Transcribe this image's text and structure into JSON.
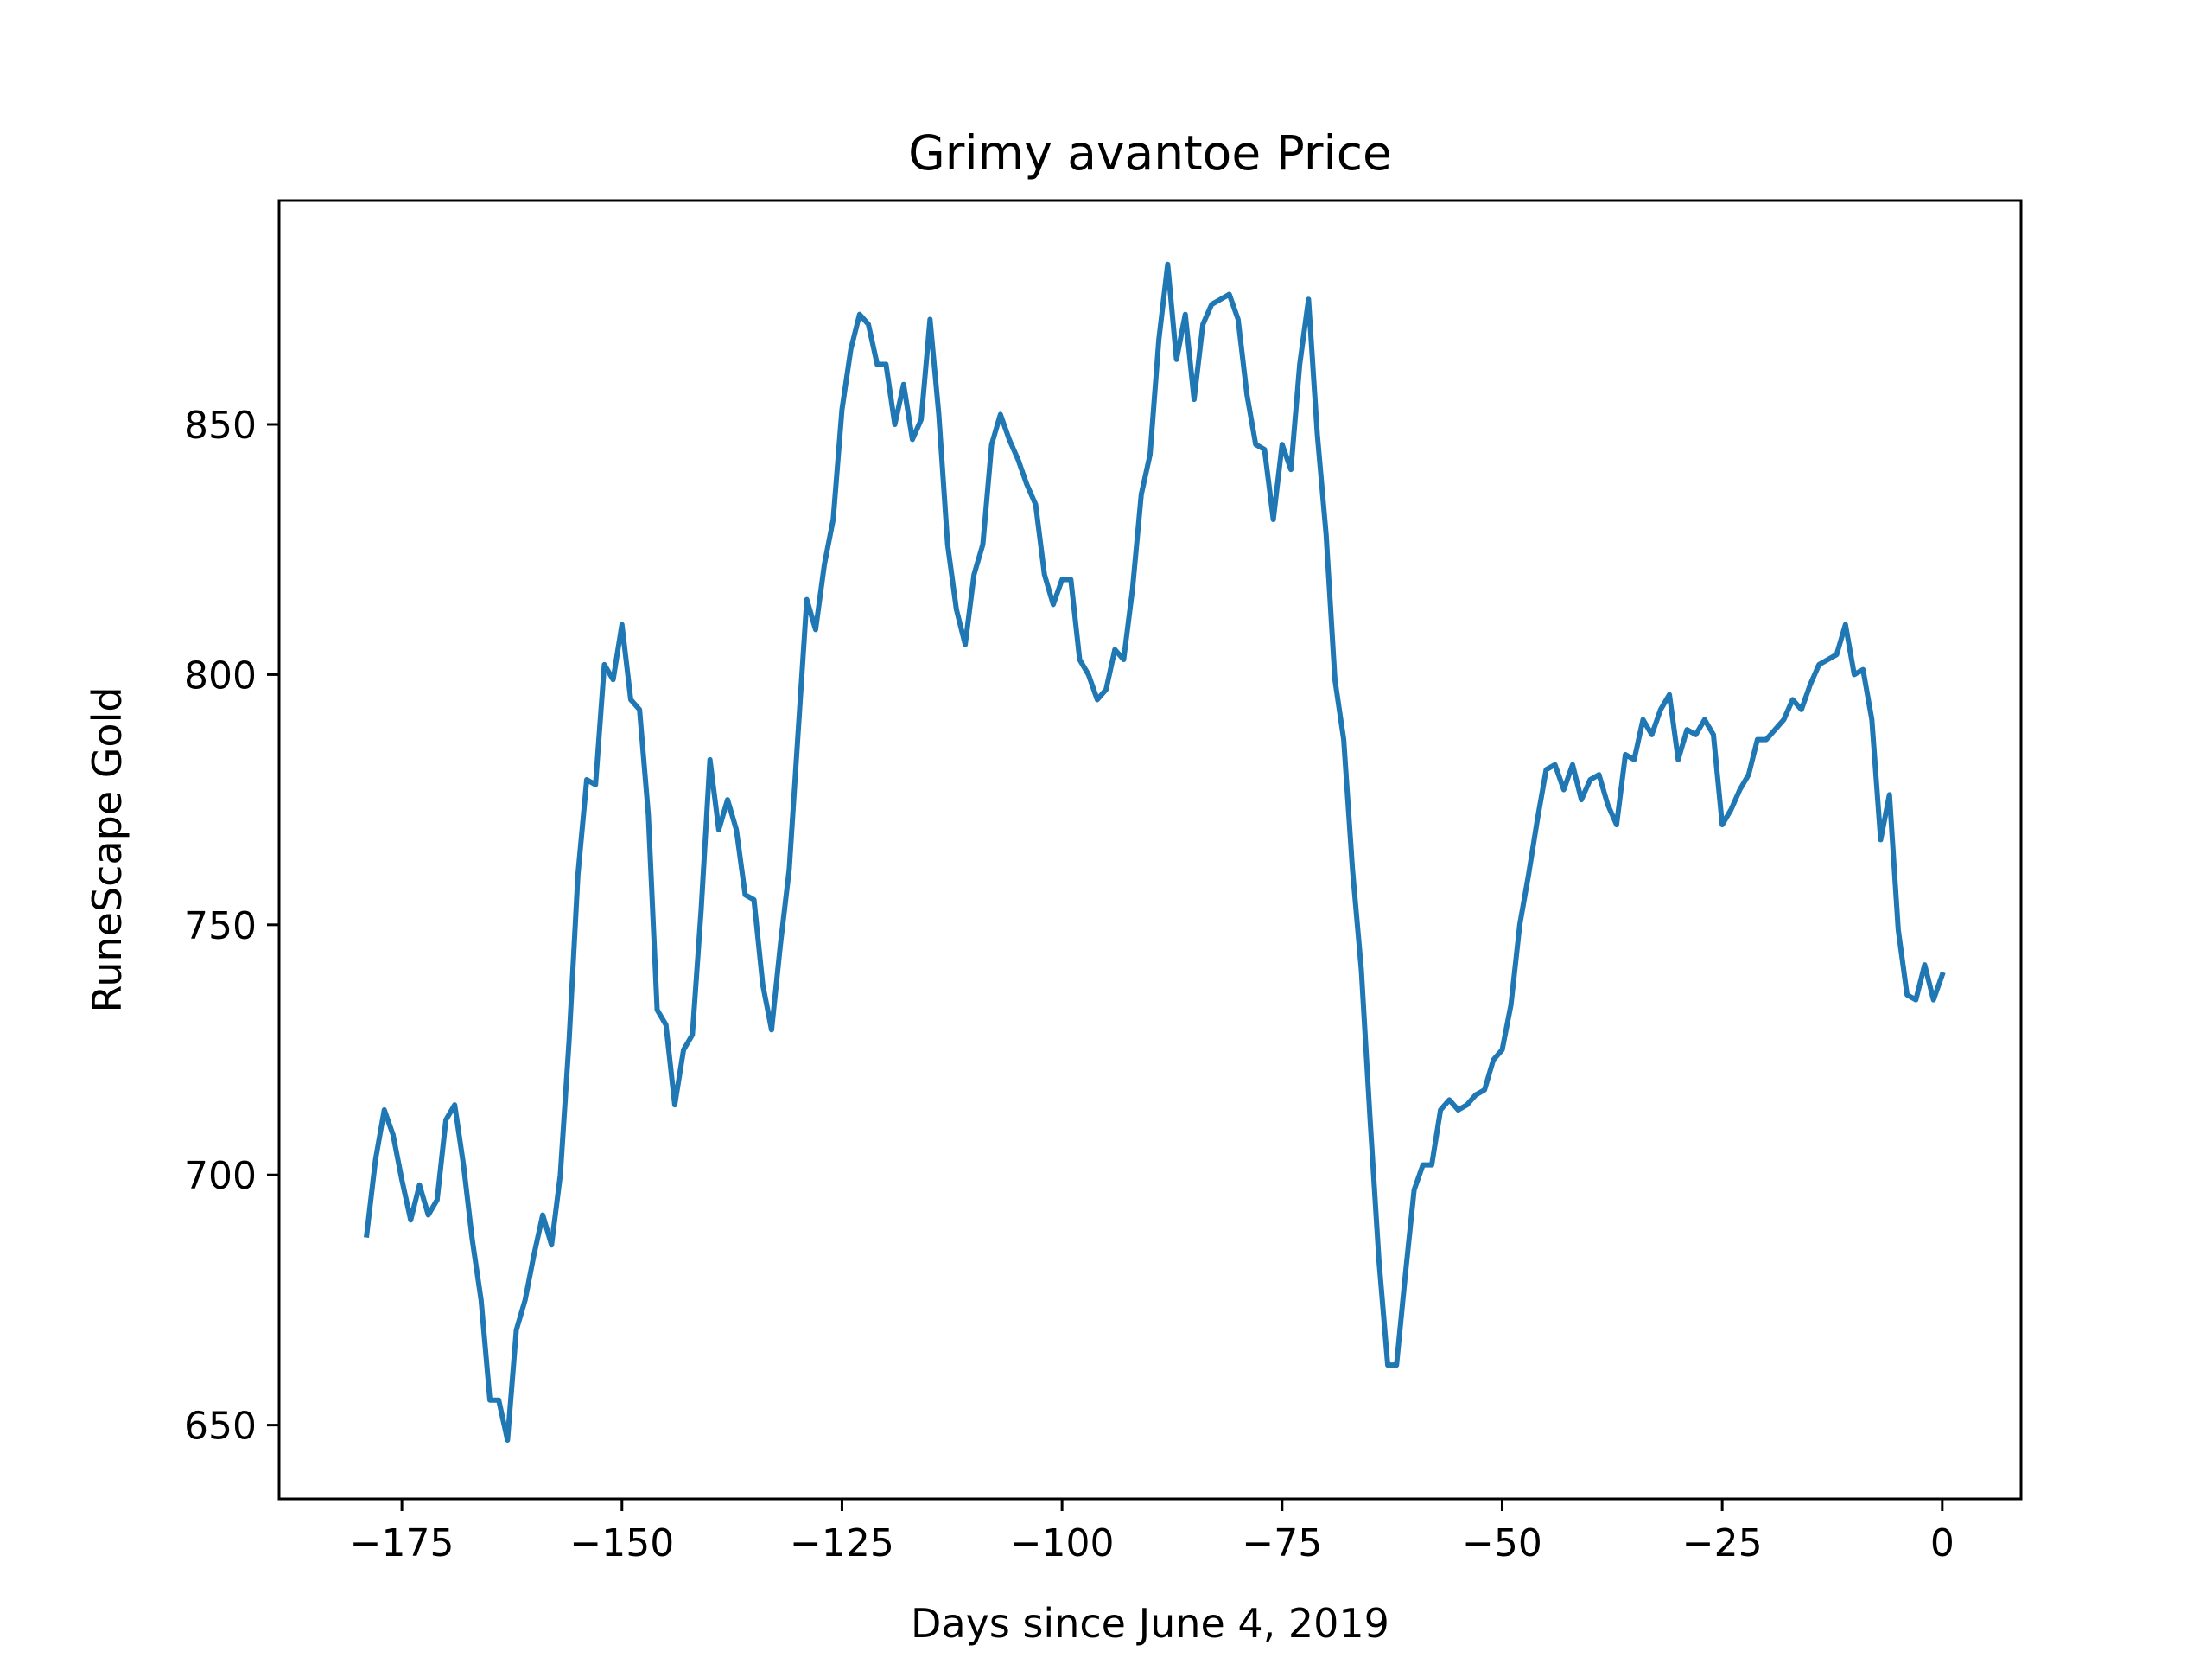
{
  "chart_data": {
    "type": "line",
    "title": "Grimy avantoe Price",
    "xlabel": "Days since June 4, 2019",
    "ylabel": "RuneScape Gold",
    "xlim": [
      -188.95,
      8.95
    ],
    "ylim": [
      635.25,
      894.75
    ],
    "xticks": [
      -175,
      -150,
      -125,
      -100,
      -75,
      -50,
      -25,
      0
    ],
    "xtick_labels": [
      "−175",
      "−150",
      "−125",
      "−100",
      "−75",
      "−50",
      "−25",
      "0"
    ],
    "yticks": [
      650,
      700,
      750,
      800,
      850
    ],
    "ytick_labels": [
      "650",
      "700",
      "750",
      "800",
      "850"
    ],
    "grid": false,
    "series": [
      {
        "color": "#1f77b4",
        "x": [
          -179,
          -178,
          -177,
          -176,
          -175,
          -174,
          -173,
          -172,
          -171,
          -170,
          -169,
          -168,
          -167,
          -166,
          -165,
          -164,
          -163,
          -162,
          -161,
          -160,
          -159,
          -158,
          -157,
          -156,
          -155,
          -154,
          -153,
          -152,
          -151,
          -150,
          -149,
          -148,
          -147,
          -146,
          -145,
          -144,
          -143,
          -142,
          -141,
          -140,
          -139,
          -138,
          -137,
          -136,
          -135,
          -134,
          -133,
          -132,
          -131,
          -130,
          -129,
          -128,
          -127,
          -126,
          -125,
          -124,
          -123,
          -122,
          -121,
          -120,
          -119,
          -118,
          -117,
          -116,
          -115,
          -114,
          -113,
          -112,
          -111,
          -110,
          -109,
          -108,
          -107,
          -106,
          -105,
          -104,
          -103,
          -102,
          -101,
          -100,
          -99,
          -98,
          -97,
          -96,
          -95,
          -94,
          -93,
          -92,
          -91,
          -90,
          -89,
          -88,
          -87,
          -86,
          -85,
          -84,
          -83,
          -82,
          -81,
          -80,
          -79,
          -78,
          -77,
          -76,
          -75,
          -74,
          -73,
          -72,
          -71,
          -70,
          -69,
          -68,
          -67,
          -66,
          -65,
          -64,
          -63,
          -62,
          -61,
          -60,
          -59,
          -58,
          -57,
          -56,
          -55,
          -54,
          -53,
          -52,
          -51,
          -50,
          -49,
          -48,
          -47,
          -46,
          -45,
          -44,
          -43,
          -42,
          -41,
          -40,
          -39,
          -38,
          -37,
          -36,
          -35,
          -34,
          -33,
          -32,
          -31,
          -30,
          -29,
          -28,
          -27,
          -26,
          -25,
          -24,
          -23,
          -22,
          -21,
          -20,
          -19,
          -18,
          -17,
          -16,
          -15,
          -14,
          -13,
          -12,
          -11,
          -10,
          -9,
          -8,
          -7,
          -6,
          -5,
          -4,
          -3,
          -2,
          -1,
          0
        ],
        "values": [
          688,
          703,
          713,
          708,
          699,
          691,
          698,
          692,
          695,
          711,
          714,
          702,
          687,
          675,
          655,
          655,
          647,
          669,
          675,
          684,
          692,
          686,
          700,
          727,
          760,
          779,
          778,
          802,
          799,
          810,
          795,
          793,
          772,
          733,
          730,
          714,
          725,
          728,
          753,
          783,
          769,
          775,
          769,
          756,
          755,
          738,
          729,
          746,
          761,
          788,
          815,
          809,
          822,
          831,
          853,
          865,
          872,
          870,
          862,
          862,
          850,
          858,
          847,
          851,
          871,
          852,
          826,
          813,
          806,
          820,
          826,
          846,
          852,
          847,
          843,
          838,
          834,
          820,
          814,
          819,
          819,
          803,
          800,
          795,
          797,
          805,
          803,
          817,
          836,
          844,
          867,
          882,
          863,
          872,
          855,
          870,
          874,
          875,
          876,
          871,
          856,
          846,
          845,
          831,
          846,
          841,
          862,
          875,
          848,
          828,
          799,
          787,
          761,
          741,
          711,
          683,
          662,
          662,
          680,
          697,
          702,
          702,
          713,
          715,
          713,
          714,
          716,
          717,
          723,
          725,
          734,
          750,
          760,
          771,
          781,
          782,
          777,
          782,
          775,
          779,
          780,
          774,
          770,
          784,
          783,
          791,
          788,
          793,
          796,
          783,
          789,
          788,
          791,
          788,
          770,
          773,
          777,
          780,
          787,
          787,
          789,
          791,
          795,
          793,
          798,
          802,
          803,
          804,
          810,
          800,
          801,
          791,
          767,
          776,
          749,
          736,
          735,
          742,
          735,
          740
        ]
      }
    ]
  }
}
